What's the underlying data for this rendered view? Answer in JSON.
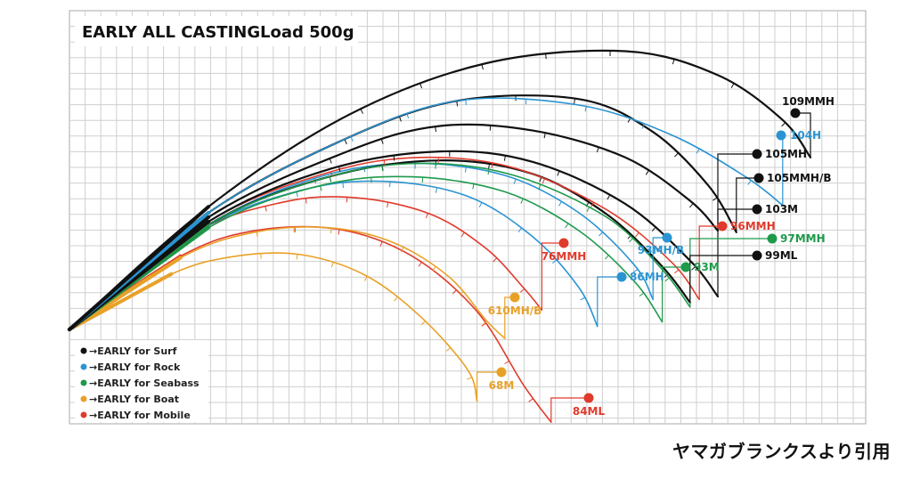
{
  "chart_data": {
    "type": "line",
    "title": "EARLY ALL CASTING",
    "subtitle": "Load 500g",
    "xlabel": "",
    "ylabel": "",
    "grid": true,
    "legend": [
      {
        "label": "→EARLY for Surf",
        "color": "#111111"
      },
      {
        "label": "→EARLY for Rock",
        "color": "#2a94d2"
      },
      {
        "label": "→EARLY for Seabass",
        "color": "#1e9a4b"
      },
      {
        "label": "→EARLY for Boat",
        "color": "#e8a128"
      },
      {
        "label": "→EARLY for Mobile",
        "color": "#e03a2c"
      }
    ],
    "legend_position": "bottom-left",
    "series": [
      {
        "name": "109MMH",
        "group": "Surf",
        "color": "#111111",
        "points": [
          [
            0,
            0
          ],
          [
            15,
            8.2
          ],
          [
            30,
            14.3
          ],
          [
            45,
            17.8
          ],
          [
            60,
            18.6
          ],
          [
            70,
            17.0
          ],
          [
            77,
            14.0
          ],
          [
            80,
            11.5
          ]
        ]
      },
      {
        "name": "104H",
        "group": "Rock",
        "color": "#2a94d2",
        "points": [
          [
            0,
            0
          ],
          [
            15,
            7.8
          ],
          [
            30,
            12.8
          ],
          [
            42,
            15.3
          ],
          [
            55,
            15.0
          ],
          [
            65,
            13.0
          ],
          [
            73,
            10.2
          ],
          [
            77,
            8.3
          ]
        ]
      },
      {
        "name": "105MH",
        "group": "Surf",
        "color": "#111111",
        "points": [
          [
            0,
            0
          ],
          [
            15,
            7.5
          ],
          [
            30,
            11.9
          ],
          [
            40,
            13.6
          ],
          [
            50,
            13.3
          ],
          [
            60,
            11.5
          ],
          [
            67,
            8.6
          ],
          [
            70,
            6.6
          ]
        ]
      },
      {
        "name": "105MMH/B",
        "group": "Surf",
        "color": "#111111",
        "points": [
          [
            0,
            0
          ],
          [
            15,
            7.8
          ],
          [
            30,
            12.8
          ],
          [
            42,
            15.3
          ],
          [
            55,
            15.4
          ],
          [
            63,
            13.2
          ],
          [
            69,
            9.6
          ],
          [
            72,
            6.5
          ]
        ]
      },
      {
        "name": "103M",
        "group": "Surf",
        "color": "#111111",
        "points": [
          [
            0,
            0
          ],
          [
            15,
            7.2
          ],
          [
            28,
            10.7
          ],
          [
            40,
            11.9
          ],
          [
            50,
            11.2
          ],
          [
            60,
            8.4
          ],
          [
            67,
            4.6
          ],
          [
            70,
            2.2
          ]
        ]
      },
      {
        "name": "96MMH",
        "group": "Mobile",
        "color": "#e03a2c",
        "points": [
          [
            0,
            0
          ],
          [
            15,
            7.2
          ],
          [
            28,
            10.5
          ],
          [
            38,
            11.5
          ],
          [
            48,
            10.8
          ],
          [
            58,
            8.0
          ],
          [
            65,
            4.5
          ],
          [
            68,
            2.0
          ]
        ]
      },
      {
        "name": "97MMH",
        "group": "Seabass",
        "color": "#1e9a4b",
        "points": [
          [
            0,
            0
          ],
          [
            15,
            7.0
          ],
          [
            28,
            10.2
          ],
          [
            38,
            11.1
          ],
          [
            48,
            10.3
          ],
          [
            58,
            7.5
          ],
          [
            64,
            4.0
          ],
          [
            67,
            1.5
          ]
        ]
      },
      {
        "name": "99ML",
        "group": "Surf",
        "color": "#111111",
        "points": [
          [
            0,
            0
          ],
          [
            15,
            7.0
          ],
          [
            28,
            10.2
          ],
          [
            40,
            11.3
          ],
          [
            50,
            10.4
          ],
          [
            58,
            7.7
          ],
          [
            64,
            4.2
          ],
          [
            67,
            1.8
          ]
        ]
      },
      {
        "name": "93M",
        "group": "Seabass",
        "color": "#1e9a4b",
        "points": [
          [
            0,
            0
          ],
          [
            15,
            6.8
          ],
          [
            27,
            9.6
          ],
          [
            37,
            10.2
          ],
          [
            47,
            9.2
          ],
          [
            55,
            6.6
          ],
          [
            61,
            3.2
          ],
          [
            64,
            0.5
          ]
        ]
      },
      {
        "name": "93MH/B",
        "group": "Rock",
        "color": "#2a94d2",
        "points": [
          [
            0,
            0
          ],
          [
            15,
            7.0
          ],
          [
            27,
            10.2
          ],
          [
            37,
            11.1
          ],
          [
            47,
            10.3
          ],
          [
            55,
            7.8
          ],
          [
            61,
            4.3
          ],
          [
            63,
            2.0
          ]
        ]
      },
      {
        "name": "86MH",
        "group": "Rock",
        "color": "#2a94d2",
        "points": [
          [
            0,
            0
          ],
          [
            14,
            6.6
          ],
          [
            25,
            9.3
          ],
          [
            34,
            9.9
          ],
          [
            43,
            8.9
          ],
          [
            50,
            6.2
          ],
          [
            55,
            2.8
          ],
          [
            57,
            0.2
          ]
        ]
      },
      {
        "name": "76MMH",
        "group": "Mobile",
        "color": "#e03a2c",
        "points": [
          [
            0,
            0
          ],
          [
            13,
            6.3
          ],
          [
            23,
            8.5
          ],
          [
            31,
            8.8
          ],
          [
            39,
            7.7
          ],
          [
            45,
            5.4
          ],
          [
            49,
            2.8
          ],
          [
            51,
            1.3
          ]
        ]
      },
      {
        "name": "610MH/B",
        "group": "Boat",
        "color": "#e8a128",
        "points": [
          [
            0,
            0
          ],
          [
            12,
            4.8
          ],
          [
            20,
            6.5
          ],
          [
            28,
            6.8
          ],
          [
            35,
            5.8
          ],
          [
            41,
            3.5
          ],
          [
            45,
            0.6
          ],
          [
            47,
            -0.6
          ]
        ]
      },
      {
        "name": "84ML",
        "group": "Mobile",
        "color": "#e03a2c",
        "points": [
          [
            0,
            0
          ],
          [
            12,
            4.9
          ],
          [
            20,
            6.6
          ],
          [
            29,
            6.7
          ],
          [
            37,
            4.9
          ],
          [
            44,
            1.2
          ],
          [
            49,
            -3.7
          ],
          [
            52,
            -6.2
          ]
        ]
      },
      {
        "name": "68M",
        "group": "Boat",
        "color": "#e8a128",
        "points": [
          [
            0,
            0
          ],
          [
            11,
            3.7
          ],
          [
            18,
            4.9
          ],
          [
            25,
            5.0
          ],
          [
            32,
            3.6
          ],
          [
            38,
            0.8
          ],
          [
            43,
            -2.7
          ],
          [
            44,
            -4.8
          ]
        ]
      }
    ],
    "end_labels": [
      {
        "text": "109MMH",
        "color": "#111111"
      },
      {
        "text": "104H",
        "color": "#2a94d2"
      },
      {
        "text": "105MH",
        "color": "#111111"
      },
      {
        "text": "105MMH/B",
        "color": "#111111"
      },
      {
        "text": "103M",
        "color": "#111111"
      },
      {
        "text": "96MMH",
        "color": "#e03a2c"
      },
      {
        "text": "97MMH",
        "color": "#1e9a4b"
      },
      {
        "text": "93MH/B",
        "color": "#2a94d2"
      },
      {
        "text": "99ML",
        "color": "#111111"
      },
      {
        "text": "93M",
        "color": "#1e9a4b"
      },
      {
        "text": "76MMH",
        "color": "#e03a2c"
      },
      {
        "text": "86MH",
        "color": "#2a94d2"
      },
      {
        "text": "610MH/B",
        "color": "#e8a128"
      },
      {
        "text": "68M",
        "color": "#e8a128"
      },
      {
        "text": "84ML",
        "color": "#e03a2c"
      }
    ]
  },
  "source_note": "ヤマガブランクスより引用"
}
